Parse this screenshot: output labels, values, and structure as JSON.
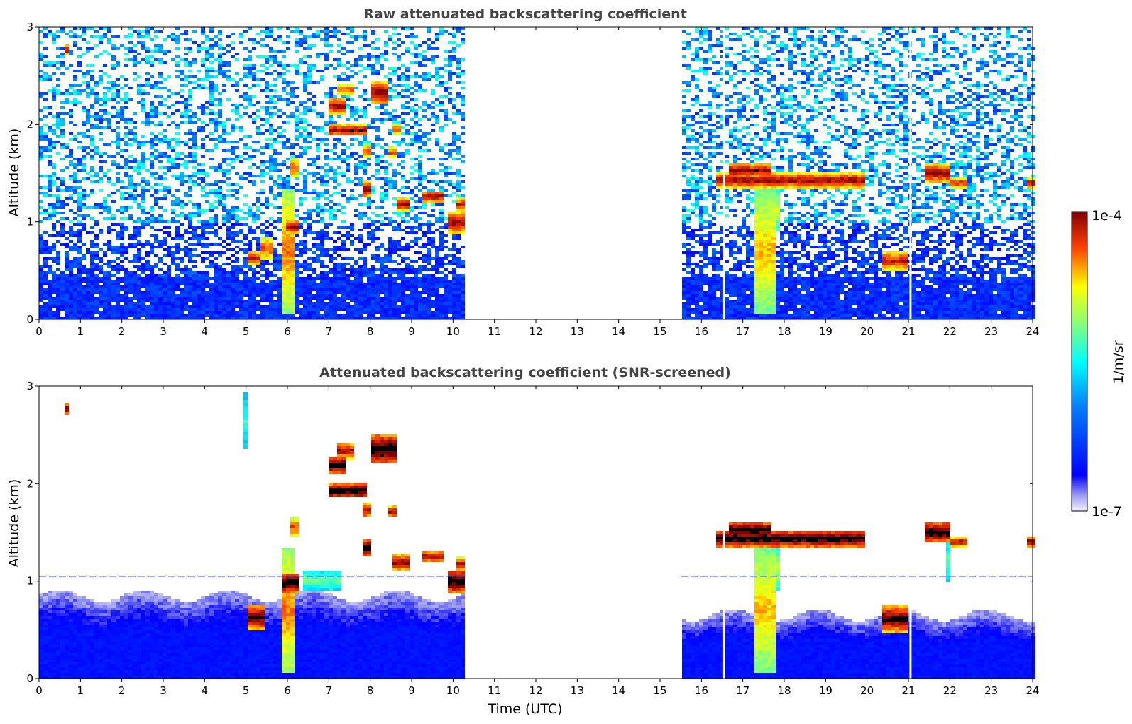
{
  "figure": {
    "xlabel": "Time (UTC)",
    "colorbar": {
      "label": "1/m/sr",
      "max_label": "1e-4",
      "min_label": "1e-7",
      "scale": "log",
      "range": [
        1e-07,
        0.0001
      ]
    }
  },
  "chart_data": [
    {
      "type": "heatmap",
      "title": "Raw attenuated backscattering coefficient",
      "xlabel": "",
      "ylabel": "Altitude (km)",
      "xlim": [
        0,
        24
      ],
      "ylim": [
        0,
        3
      ],
      "xticks": [
        "0",
        "1",
        "2",
        "3",
        "4",
        "5",
        "6",
        "7",
        "8",
        "9",
        "10",
        "11",
        "12",
        "13",
        "14",
        "15",
        "16",
        "17",
        "18",
        "19",
        "20",
        "21",
        "22",
        "23",
        "24"
      ],
      "yticks": [
        "0",
        "1",
        "2",
        "3"
      ],
      "data_segments_hours": [
        [
          0,
          10.25
        ],
        [
          15.5,
          24
        ]
      ],
      "gap_hours": [
        [
          10.25,
          15.5
        ]
      ],
      "dropout_lines_hours": [
        16.55,
        21.05
      ],
      "noise": true,
      "cloud_features": [
        {
          "t": [
            0.58,
            0.72
          ],
          "z": [
            2.72,
            2.82
          ],
          "level": 1.0
        },
        {
          "t": [
            7.0,
            7.4
          ],
          "z": [
            2.1,
            2.28
          ],
          "level": 1.0
        },
        {
          "t": [
            7.0,
            7.9
          ],
          "z": [
            1.88,
            2.0
          ],
          "level": 1.0
        },
        {
          "t": [
            8.0,
            8.45
          ],
          "z": [
            2.2,
            2.45
          ],
          "level": 1.0
        },
        {
          "t": [
            7.2,
            7.6
          ],
          "z": [
            2.3,
            2.42
          ],
          "level": 0.9
        },
        {
          "t": [
            8.5,
            8.7
          ],
          "z": [
            1.9,
            2.0
          ],
          "level": 0.9
        },
        {
          "t": [
            7.75,
            8.0
          ],
          "z": [
            1.65,
            1.8
          ],
          "level": 0.9
        },
        {
          "t": [
            8.45,
            8.6
          ],
          "z": [
            1.65,
            1.77
          ],
          "level": 0.9
        },
        {
          "t": [
            7.8,
            8.05
          ],
          "z": [
            1.25,
            1.42
          ],
          "level": 1.0
        },
        {
          "t": [
            8.6,
            8.95
          ],
          "z": [
            1.12,
            1.25
          ],
          "level": 1.0
        },
        {
          "t": [
            9.2,
            9.7
          ],
          "z": [
            1.2,
            1.32
          ],
          "level": 1.0
        },
        {
          "t": [
            9.8,
            10.25
          ],
          "z": [
            0.88,
            1.1
          ],
          "level": 1.0
        },
        {
          "t": [
            10.1,
            10.25
          ],
          "z": [
            1.1,
            1.25
          ],
          "level": 0.95
        },
        {
          "t": [
            6.1,
            6.25
          ],
          "z": [
            1.45,
            1.65
          ],
          "level": 0.9
        },
        {
          "t": [
            5.8,
            6.2
          ],
          "z": [
            0.05,
            1.35
          ],
          "level": 0.85
        },
        {
          "t": [
            5.9,
            6.25
          ],
          "z": [
            0.88,
            1.02
          ],
          "level": 1.0
        },
        {
          "t": [
            5.0,
            5.3
          ],
          "z": [
            0.55,
            0.7
          ],
          "level": 0.95
        },
        {
          "t": [
            5.35,
            5.6
          ],
          "z": [
            0.6,
            0.85
          ],
          "level": 0.9
        },
        {
          "t": [
            16.3,
            19.9
          ],
          "z": [
            1.35,
            1.5
          ],
          "level": 1.0
        },
        {
          "t": [
            16.6,
            17.6
          ],
          "z": [
            1.45,
            1.6
          ],
          "level": 1.0
        },
        {
          "t": [
            17.2,
            17.7
          ],
          "z": [
            0.05,
            1.35
          ],
          "level": 0.8
        },
        {
          "t": [
            17.55,
            17.85
          ],
          "z": [
            0.9,
            1.35
          ],
          "level": 0.7
        },
        {
          "t": [
            20.3,
            20.9
          ],
          "z": [
            0.5,
            0.7
          ],
          "level": 0.95
        },
        {
          "t": [
            21.3,
            21.9
          ],
          "z": [
            1.4,
            1.6
          ],
          "level": 1.0
        },
        {
          "t": [
            22.0,
            22.4
          ],
          "z": [
            1.35,
            1.45
          ],
          "level": 0.95
        },
        {
          "t": [
            23.8,
            24.0
          ],
          "z": [
            1.35,
            1.45
          ],
          "level": 1.0
        }
      ]
    },
    {
      "type": "heatmap",
      "title": "Attenuated backscattering coefficient (SNR-screened)",
      "xlabel": "Time (UTC)",
      "ylabel": "Altitude (km)",
      "xlim": [
        0,
        24
      ],
      "ylim": [
        0,
        3
      ],
      "xticks": [
        "0",
        "1",
        "2",
        "3",
        "4",
        "5",
        "6",
        "7",
        "8",
        "9",
        "10",
        "11",
        "12",
        "13",
        "14",
        "15",
        "16",
        "17",
        "18",
        "19",
        "20",
        "21",
        "22",
        "23",
        "24"
      ],
      "yticks": [
        "0",
        "1",
        "2",
        "3"
      ],
      "data_segments_hours": [
        [
          0,
          10.25
        ],
        [
          15.5,
          24
        ]
      ],
      "gap_hours": [
        [
          10.25,
          15.5
        ]
      ],
      "dropout_lines_hours": [
        16.55,
        21.05
      ],
      "noise": false,
      "aerosol_layer_top_km": [
        0.85,
        0.65
      ],
      "dashed_line_km": 1.05,
      "cloud_features": [
        {
          "t": [
            0.58,
            0.72
          ],
          "z": [
            2.72,
            2.82
          ],
          "level": 1.1
        },
        {
          "t": [
            4.88,
            4.98
          ],
          "z": [
            2.35,
            2.95
          ],
          "level": 0.55
        },
        {
          "t": [
            7.0,
            7.4
          ],
          "z": [
            2.1,
            2.28
          ],
          "level": 1.1
        },
        {
          "t": [
            7.0,
            7.9
          ],
          "z": [
            1.85,
            2.0
          ],
          "level": 1.1
        },
        {
          "t": [
            8.0,
            8.6
          ],
          "z": [
            2.2,
            2.5
          ],
          "level": 1.1
        },
        {
          "t": [
            7.2,
            7.6
          ],
          "z": [
            2.25,
            2.42
          ],
          "level": 1.0
        },
        {
          "t": [
            7.75,
            8.0
          ],
          "z": [
            1.65,
            1.8
          ],
          "level": 1.0
        },
        {
          "t": [
            8.45,
            8.6
          ],
          "z": [
            1.65,
            1.77
          ],
          "level": 1.0
        },
        {
          "t": [
            7.8,
            8.05
          ],
          "z": [
            1.25,
            1.42
          ],
          "level": 1.1
        },
        {
          "t": [
            8.55,
            8.95
          ],
          "z": [
            1.1,
            1.28
          ],
          "level": 1.0
        },
        {
          "t": [
            9.2,
            9.7
          ],
          "z": [
            1.18,
            1.32
          ],
          "level": 1.0
        },
        {
          "t": [
            9.8,
            10.25
          ],
          "z": [
            0.88,
            1.12
          ],
          "level": 1.1
        },
        {
          "t": [
            10.1,
            10.25
          ],
          "z": [
            1.1,
            1.25
          ],
          "level": 0.95
        },
        {
          "t": [
            6.1,
            6.25
          ],
          "z": [
            1.45,
            1.65
          ],
          "level": 0.9
        },
        {
          "t": [
            5.8,
            6.2
          ],
          "z": [
            0.05,
            1.35
          ],
          "level": 0.85
        },
        {
          "t": [
            5.85,
            6.3
          ],
          "z": [
            0.88,
            1.08
          ],
          "level": 1.1
        },
        {
          "t": [
            5.0,
            5.4
          ],
          "z": [
            0.5,
            0.75
          ],
          "level": 1.05
        },
        {
          "t": [
            6.4,
            7.3
          ],
          "z": [
            0.9,
            1.12
          ],
          "level": 0.6
        },
        {
          "t": [
            16.3,
            19.9
          ],
          "z": [
            1.35,
            1.52
          ],
          "level": 1.1
        },
        {
          "t": [
            16.6,
            17.6
          ],
          "z": [
            1.45,
            1.6
          ],
          "level": 1.1
        },
        {
          "t": [
            17.2,
            17.7
          ],
          "z": [
            0.05,
            1.35
          ],
          "level": 0.8
        },
        {
          "t": [
            17.55,
            17.85
          ],
          "z": [
            0.9,
            1.35
          ],
          "level": 0.7
        },
        {
          "t": [
            20.3,
            20.9
          ],
          "z": [
            0.48,
            0.75
          ],
          "level": 1.05
        },
        {
          "t": [
            21.3,
            21.9
          ],
          "z": [
            1.4,
            1.6
          ],
          "level": 1.1
        },
        {
          "t": [
            21.8,
            21.95
          ],
          "z": [
            1.0,
            1.4
          ],
          "level": 0.6
        },
        {
          "t": [
            22.0,
            22.4
          ],
          "z": [
            1.35,
            1.45
          ],
          "level": 1.0
        },
        {
          "t": [
            23.8,
            24.0
          ],
          "z": [
            1.35,
            1.45
          ],
          "level": 1.05
        }
      ]
    }
  ]
}
